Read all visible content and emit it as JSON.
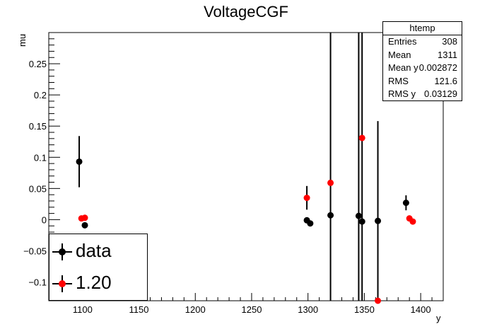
{
  "chart_data": {
    "type": "scatter",
    "title": "VoltageCGF",
    "xlabel": "y",
    "ylabel": "mu",
    "xlim": [
      1070,
      1420
    ],
    "ylim": [
      -0.13,
      0.3
    ],
    "x_ticks": [
      1100,
      1150,
      1200,
      1250,
      1300,
      1350,
      1400
    ],
    "y_ticks": [
      -0.1,
      -0.05,
      0,
      0.05,
      0.1,
      0.15,
      0.2,
      0.25
    ],
    "x_tick_labels": [
      "1100",
      "1150",
      "1200",
      "1250",
      "1300",
      "1350",
      "1400"
    ],
    "y_tick_labels": [
      "−0.1",
      "−0.05",
      "0",
      "0.05",
      "0.1",
      "0.15",
      "0.2",
      "0.25"
    ],
    "grid": false,
    "legend_placement": "bottom-left",
    "series": [
      {
        "name": "data",
        "color": "#000000",
        "points": [
          {
            "x": 1097,
            "y": 0.093,
            "err": 0.041
          },
          {
            "x": 1102,
            "y": -0.009,
            "err": 0.0
          },
          {
            "x": 1299,
            "y": -0.001,
            "err": 0.0
          },
          {
            "x": 1302,
            "y": -0.006,
            "err": 0.0
          },
          {
            "x": 1320,
            "y": 0.007,
            "err": 0.4
          },
          {
            "x": 1345,
            "y": 0.006,
            "err": 0.4
          },
          {
            "x": 1348,
            "y": -0.003,
            "err": 0.4
          },
          {
            "x": 1362,
            "y": -0.002,
            "err": 0.16
          },
          {
            "x": 1387,
            "y": 0.027,
            "err": 0.012
          }
        ]
      },
      {
        "name": "1.20",
        "color": "#ff0000",
        "points": [
          {
            "x": 1099,
            "y": 0.002,
            "err": 0.0
          },
          {
            "x": 1102,
            "y": 0.003,
            "err": 0.0
          },
          {
            "x": 1299,
            "y": 0.035,
            "err": 0.019
          },
          {
            "x": 1320,
            "y": 0.059,
            "err": 0.0
          },
          {
            "x": 1348,
            "y": 0.131,
            "err": 0.0
          },
          {
            "x": 1362,
            "y": -0.13,
            "err": 0.0
          },
          {
            "x": 1390,
            "y": 0.002,
            "err": 0.0
          },
          {
            "x": 1393,
            "y": -0.003,
            "err": 0.0
          }
        ]
      }
    ]
  },
  "stats_box": {
    "name": "htemp",
    "rows": [
      {
        "label": "Entries",
        "value": "308"
      },
      {
        "label": "Mean",
        "value": "1311"
      },
      {
        "label": "Mean y",
        "value": "0.002872"
      },
      {
        "label": "RMS",
        "value": "121.6"
      },
      {
        "label": "RMS y",
        "value": "0.03129"
      }
    ]
  }
}
